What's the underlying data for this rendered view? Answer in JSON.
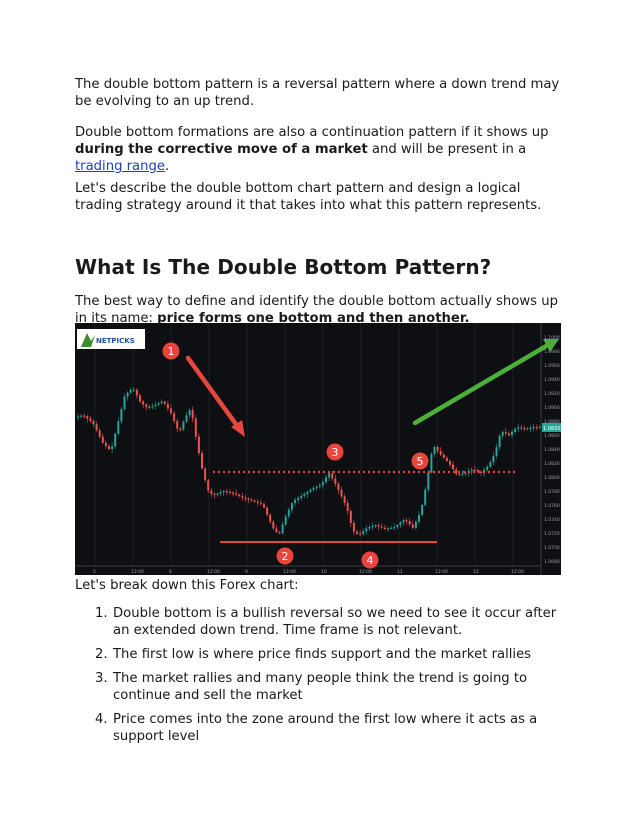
{
  "intro": {
    "p1": "The double bottom pattern is a reversal pattern where a down trend may be evolving to an up trend.",
    "p2_before": "Double bottom formations are also a continuation pattern if it shows up ",
    "p2_bold": "during the corrective move of a market",
    "p2_mid": " and will be present in a ",
    "p2_link": "trading range",
    "p2_end": ".",
    "p3": "Let's describe the double bottom chart pattern and design a logical trading strategy around it that takes into what this pattern represents."
  },
  "section": {
    "heading": "What Is The Double Bottom Pattern?",
    "p1_before": "The best way to define and identify the double bottom actually shows up in its name:  ",
    "p1_bold": "price forms one bottom and then another."
  },
  "chart": {
    "logo": "NETPICKS",
    "markers": [
      "1",
      "2",
      "3",
      "4",
      "5"
    ],
    "price_ticks": [
      "1.1000",
      "1.0980",
      "1.0960",
      "1.0940",
      "1.0920",
      "1.0900",
      "1.0880",
      "1.0860",
      "1.0840",
      "1.0820",
      "1.0800",
      "1.0780",
      "1.0760",
      "1.0740",
      "1.0720",
      "1.0700",
      "1.0680"
    ],
    "price_tag": "1.0830",
    "time_ticks": [
      "5",
      "12:00",
      "6",
      "12:00",
      "9",
      "12:00",
      "10",
      "12:00",
      "11",
      "12:00",
      "12",
      "12:00"
    ],
    "colors": {
      "up": "#26a69a",
      "down": "#ef5350",
      "arrow_down": "#e8453c",
      "arrow_up": "#4caf3a",
      "level": "#e8453c"
    }
  },
  "after_chart": "Let's break down this Forex chart:",
  "steps": [
    {
      "num": "1.",
      "text": "Double bottom is a bullish reversal so we need to see it occur after an extended down trend.  Time frame is not relevant."
    },
    {
      "num": "2.",
      "text": "The first low is where price finds support and the market rallies"
    },
    {
      "num": "3.",
      "text": "The market rallies and many people think the trend is going to continue and sell the market"
    },
    {
      "num": "4.",
      "text": "Price comes into the zone around the first low where it acts as a support level"
    }
  ]
}
